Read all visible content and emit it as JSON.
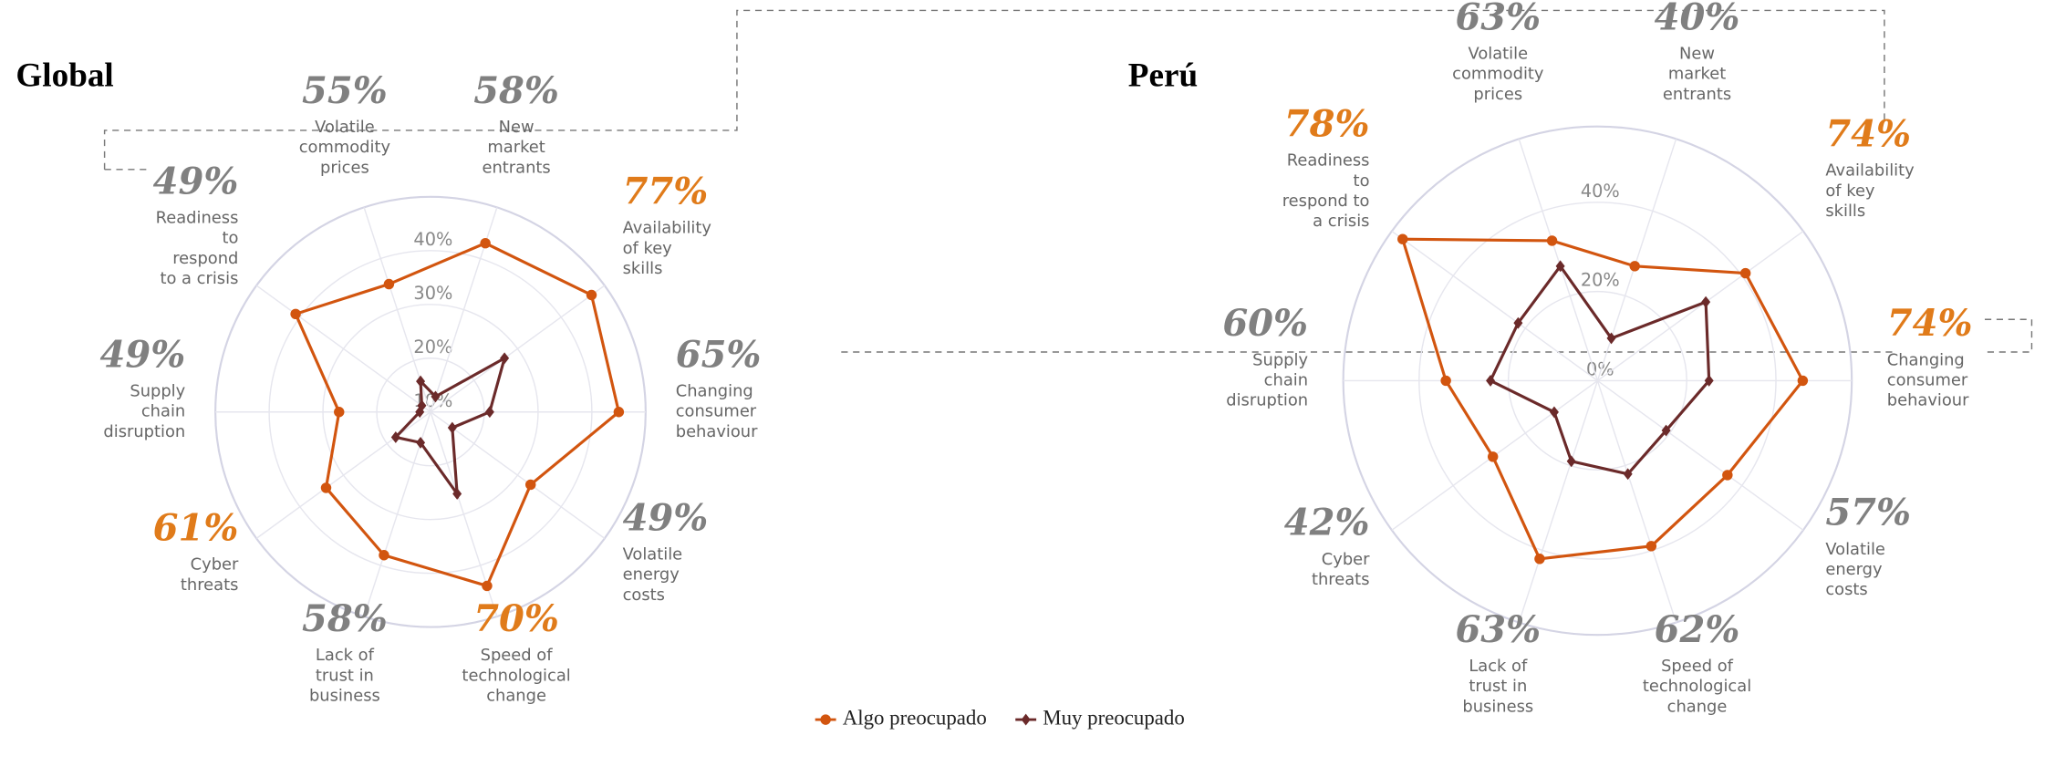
{
  "chart_data": [
    {
      "type": "radar",
      "title": "Global",
      "categories": [
        [
          "New",
          "market",
          "entrants"
        ],
        [
          "Availability",
          "of key",
          "skills"
        ],
        [
          "Changing",
          "consumer",
          "behaviour"
        ],
        [
          "Volatile",
          "energy",
          "costs"
        ],
        [
          "Speed of",
          "technological",
          "change"
        ],
        [
          "Lack of",
          "trust in",
          "business"
        ],
        [
          "Cyber",
          "threats"
        ],
        [
          "Supply",
          "chain",
          "disruption"
        ],
        [
          "Readiness",
          "to",
          "respond",
          "to a crisis"
        ],
        [
          "Volatile",
          "commodity",
          "prices"
        ]
      ],
      "category_values": [
        58,
        77,
        65,
        49,
        70,
        58,
        61,
        49,
        49,
        55
      ],
      "category_value_labels": [
        "58%",
        "77%",
        "65%",
        "49%",
        "70%",
        "58%",
        "61%",
        "49%",
        "49%",
        "55%"
      ],
      "category_value_colors": [
        "#808080",
        "#e07b1a",
        "#808080",
        "#808080",
        "#e07b1a",
        "#808080",
        "#e07b1a",
        "#808080",
        "#808080",
        "#808080"
      ],
      "rlim": [
        10,
        50
      ],
      "rticks": [
        {
          "value": 10,
          "label": "10%"
        },
        {
          "value": 20,
          "label": "20%"
        },
        {
          "value": 30,
          "label": "30%"
        },
        {
          "value": 40,
          "label": "40%"
        }
      ],
      "series": [
        {
          "name": "Algo preocupado",
          "color": "#d2550f",
          "marker": "circle",
          "values": [
            43,
            47,
            45,
            33,
            44,
            38,
            34,
            27,
            41,
            35
          ]
        },
        {
          "name": "Muy preocupado",
          "color": "#6b2a2a",
          "marker": "diamond",
          "values": [
            13,
            27,
            21,
            15,
            26,
            16,
            18,
            12,
            12,
            16
          ]
        }
      ]
    },
    {
      "type": "radar",
      "title": "Perú",
      "categories": [
        [
          "New",
          "market",
          "entrants"
        ],
        [
          "Availability",
          "of key",
          "skills"
        ],
        [
          "Changing",
          "consumer",
          "behaviour"
        ],
        [
          "Volatile",
          "energy",
          "costs"
        ],
        [
          "Speed of",
          "technological",
          "change"
        ],
        [
          "Lack of",
          "trust in",
          "business"
        ],
        [
          "Cyber",
          "threats"
        ],
        [
          "Supply",
          "chain",
          "disruption"
        ],
        [
          "Readiness",
          "to",
          "respond to",
          "a crisis"
        ],
        [
          "Volatile",
          "commodity",
          "prices"
        ]
      ],
      "category_values": [
        40,
        74,
        74,
        57,
        62,
        63,
        42,
        60,
        78,
        63
      ],
      "category_value_labels": [
        "40%",
        "74%",
        "74%",
        "57%",
        "62%",
        "63%",
        "42%",
        "60%",
        "78%",
        "63%"
      ],
      "category_value_colors": [
        "#808080",
        "#e07b1a",
        "#e07b1a",
        "#808080",
        "#808080",
        "#808080",
        "#808080",
        "#808080",
        "#e07b1a",
        "#808080"
      ],
      "rlim": [
        0,
        57
      ],
      "rticks": [
        {
          "value": 0,
          "label": "0%"
        },
        {
          "value": 20,
          "label": "20%"
        },
        {
          "value": 40,
          "label": "40%"
        }
      ],
      "series": [
        {
          "color": "#d2550f",
          "marker": "circle",
          "values": [
            27,
            41,
            46,
            36,
            39,
            42,
            29,
            34,
            54,
            33
          ]
        },
        {
          "color": "#6b2a2a",
          "marker": "diamond",
          "values": [
            10,
            30,
            25,
            19,
            22,
            19,
            12,
            24,
            22,
            27
          ]
        }
      ]
    }
  ]
}
